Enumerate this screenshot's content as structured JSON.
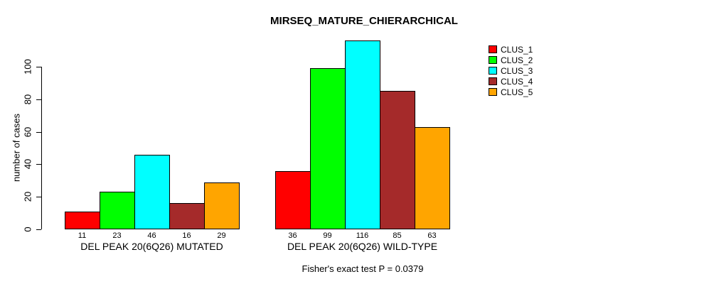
{
  "title": "MIRSEQ_MATURE_CHIERARCHICAL",
  "y_axis": {
    "label": "number of cases",
    "ticks": [
      0,
      20,
      40,
      60,
      80,
      100
    ]
  },
  "footer_note": "Fisher's exact test P = 0.0379",
  "legend": {
    "position": "top-right",
    "items": [
      {
        "label": "CLUS_1",
        "color": "#FF0000"
      },
      {
        "label": "CLUS_2",
        "color": "#00FF00"
      },
      {
        "label": "CLUS_3",
        "color": "#00FFFF"
      },
      {
        "label": "CLUS_4",
        "color": "#A52A2A"
      },
      {
        "label": "CLUS_5",
        "color": "#FFA500"
      }
    ]
  },
  "chart_data": {
    "type": "bar",
    "title": "MIRSEQ_MATURE_CHIERARCHICAL",
    "xlabel": "",
    "ylabel": "number of cases",
    "ylim": [
      0,
      100
    ],
    "grid": false,
    "legend_position": "top-right",
    "categories": [
      "DEL PEAK 20(6Q26) MUTATED",
      "DEL PEAK 20(6Q26) WILD-TYPE"
    ],
    "series": [
      {
        "name": "CLUS_1",
        "color": "#FF0000",
        "values": [
          11,
          36
        ]
      },
      {
        "name": "CLUS_2",
        "color": "#00FF00",
        "values": [
          23,
          99
        ]
      },
      {
        "name": "CLUS_3",
        "color": "#00FFFF",
        "values": [
          46,
          116
        ]
      },
      {
        "name": "CLUS_4",
        "color": "#A52A2A",
        "values": [
          16,
          85
        ]
      },
      {
        "name": "CLUS_5",
        "color": "#FFA500",
        "values": [
          29,
          63
        ]
      }
    ],
    "bar_value_labels": [
      [
        11,
        23,
        46,
        16,
        29
      ],
      [
        36,
        99,
        116,
        85,
        63
      ]
    ],
    "annotation": "Fisher's exact test P = 0.0379"
  }
}
